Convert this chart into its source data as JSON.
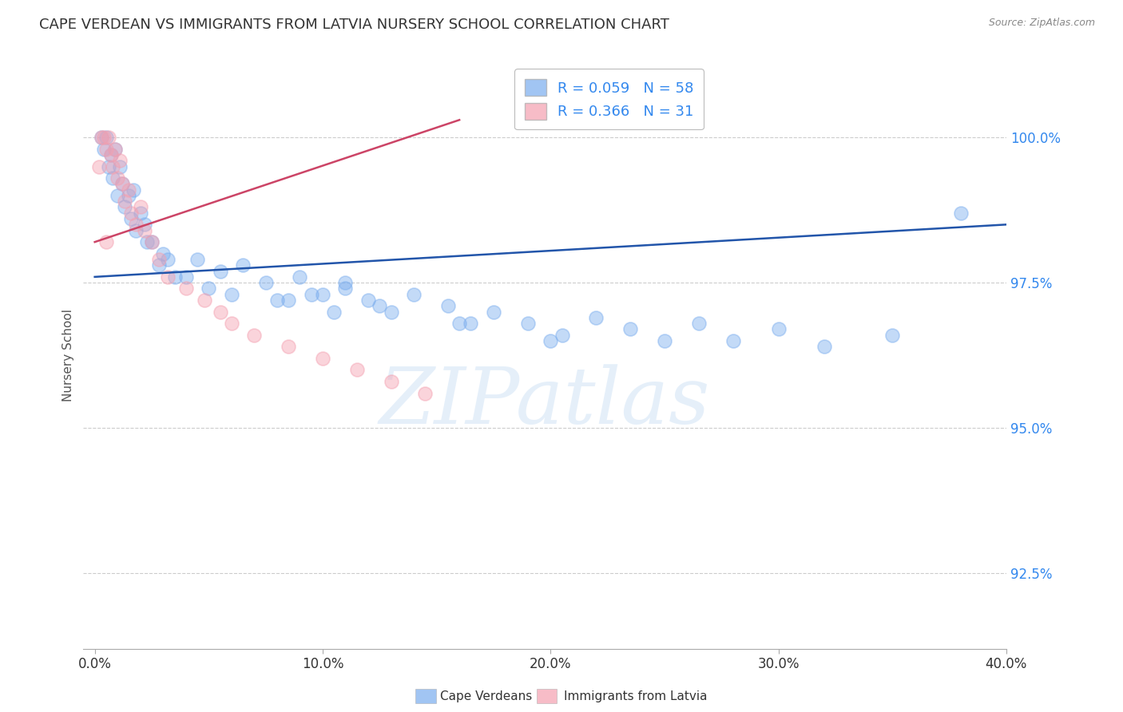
{
  "title": "CAPE VERDEAN VS IMMIGRANTS FROM LATVIA NURSERY SCHOOL CORRELATION CHART",
  "source": "Source: ZipAtlas.com",
  "xlabel_tick_vals": [
    0.0,
    10.0,
    20.0,
    30.0,
    40.0
  ],
  "ylabel": "Nursery School",
  "ylabel_tick_vals": [
    92.5,
    95.0,
    97.5,
    100.0
  ],
  "xlim": [
    -0.5,
    40.0
  ],
  "ylim": [
    91.2,
    101.3
  ],
  "blue_scatter_x": [
    0.3,
    0.4,
    0.5,
    0.6,
    0.7,
    0.8,
    0.9,
    1.0,
    1.1,
    1.2,
    1.3,
    1.5,
    1.6,
    1.7,
    1.8,
    2.0,
    2.2,
    2.5,
    2.8,
    3.0,
    3.5,
    4.5,
    5.0,
    5.5,
    6.0,
    6.5,
    7.5,
    8.5,
    9.0,
    10.0,
    11.0,
    12.0,
    13.0,
    14.0,
    15.5,
    16.5,
    17.5,
    19.0,
    20.5,
    22.0,
    23.5,
    25.0,
    26.5,
    28.0,
    30.0,
    32.0,
    35.0,
    38.0,
    11.0,
    12.5,
    8.0,
    10.5,
    16.0,
    20.0,
    9.5,
    4.0,
    3.2,
    2.3
  ],
  "blue_scatter_y": [
    100.0,
    99.8,
    100.0,
    99.5,
    99.7,
    99.3,
    99.8,
    99.0,
    99.5,
    99.2,
    98.8,
    99.0,
    98.6,
    99.1,
    98.4,
    98.7,
    98.5,
    98.2,
    97.8,
    98.0,
    97.6,
    97.9,
    97.4,
    97.7,
    97.3,
    97.8,
    97.5,
    97.2,
    97.6,
    97.3,
    97.5,
    97.2,
    97.0,
    97.3,
    97.1,
    96.8,
    97.0,
    96.8,
    96.6,
    96.9,
    96.7,
    96.5,
    96.8,
    96.5,
    96.7,
    96.4,
    96.6,
    98.7,
    97.4,
    97.1,
    97.2,
    97.0,
    96.8,
    96.5,
    97.3,
    97.6,
    97.9,
    98.2
  ],
  "pink_scatter_x": [
    0.2,
    0.3,
    0.4,
    0.5,
    0.6,
    0.7,
    0.8,
    0.9,
    1.0,
    1.1,
    1.2,
    1.3,
    1.5,
    1.6,
    1.8,
    2.0,
    2.2,
    2.5,
    2.8,
    3.2,
    4.0,
    4.8,
    5.5,
    6.0,
    7.0,
    8.5,
    10.0,
    11.5,
    13.0,
    14.5,
    0.5
  ],
  "pink_scatter_y": [
    99.5,
    100.0,
    100.0,
    99.8,
    100.0,
    99.7,
    99.5,
    99.8,
    99.3,
    99.6,
    99.2,
    98.9,
    99.1,
    98.7,
    98.5,
    98.8,
    98.4,
    98.2,
    97.9,
    97.6,
    97.4,
    97.2,
    97.0,
    96.8,
    96.6,
    96.4,
    96.2,
    96.0,
    95.8,
    95.6,
    98.2
  ],
  "blue_line_x": [
    0.0,
    40.0
  ],
  "blue_line_y": [
    97.6,
    98.5
  ],
  "pink_line_x": [
    0.0,
    16.0
  ],
  "pink_line_y": [
    98.2,
    100.3
  ],
  "blue_color": "#7aadee",
  "pink_color": "#f4a0b0",
  "blue_line_color": "#2255aa",
  "pink_line_color": "#cc4466",
  "grid_color": "#cccccc",
  "title_fontsize": 13,
  "axis_label_fontsize": 11,
  "tick_fontsize": 12,
  "scatter_size": 150,
  "scatter_alpha": 0.45,
  "watermark": "ZIPatlas",
  "legend_blue_label": "R = 0.059   N = 58",
  "legend_pink_label": "R = 0.366   N = 31"
}
